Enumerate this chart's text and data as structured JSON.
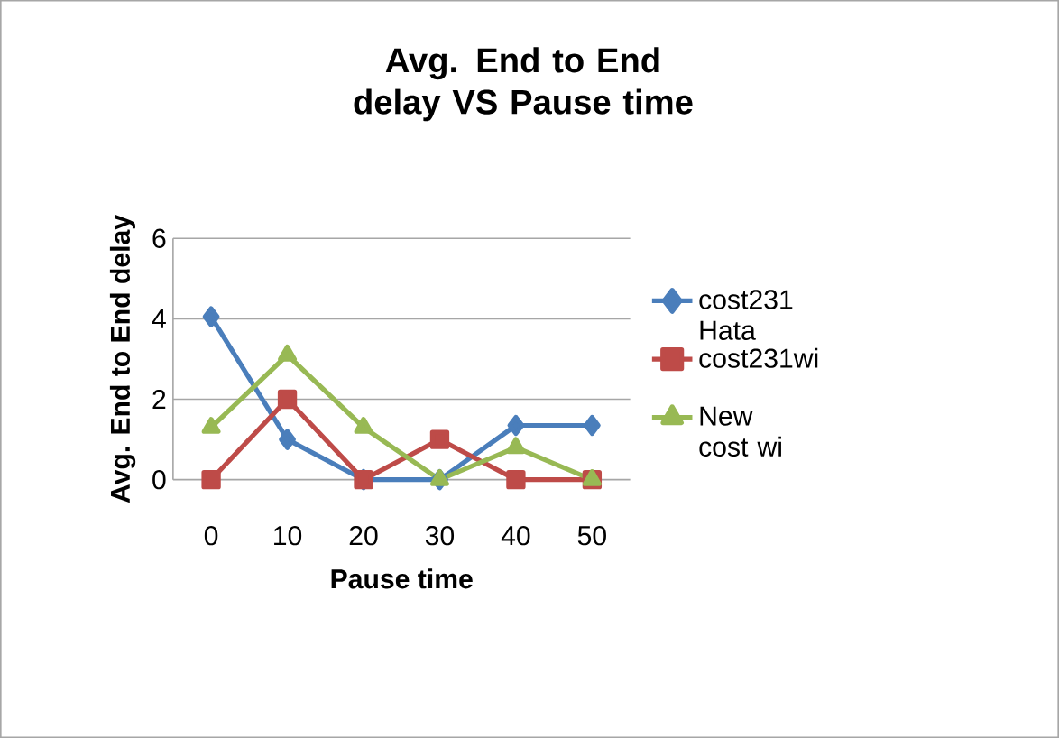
{
  "chart_data": {
    "type": "line",
    "title": "Avg. End to End delay VS Pause time",
    "xlabel": "Pause time",
    "ylabel": "Avg. End to End delay",
    "categories": [
      "0",
      "10",
      "20",
      "30",
      "40",
      "50"
    ],
    "series": [
      {
        "name": "cost231 Hata",
        "color": "#4a7ebb",
        "marker": "diamond",
        "values": [
          4.05,
          1.0,
          0,
          0,
          1.35,
          1.35
        ]
      },
      {
        "name": "cost231wi",
        "color": "#be4b48",
        "marker": "square",
        "values": [
          0,
          2.0,
          0,
          1.0,
          0,
          0
        ]
      },
      {
        "name": "New cost wi",
        "color": "#98b954",
        "marker": "triangle",
        "values": [
          1.3,
          3.1,
          1.3,
          0,
          0.8,
          0
        ]
      }
    ],
    "ylim": [
      0,
      6
    ],
    "yticks": [
      0,
      2,
      4,
      6
    ],
    "grid": "y",
    "legend": "right"
  }
}
